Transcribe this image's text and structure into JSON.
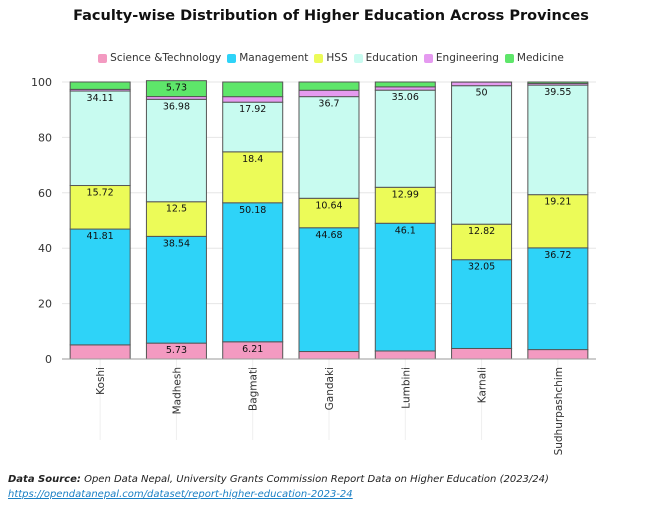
{
  "chart_data": {
    "type": "bar",
    "stacked": true,
    "title": "Faculty-wise Distribution of Higher Education Across Provinces",
    "categories": [
      "Koshi",
      "Madhesh",
      "Bagmati",
      "Gandaki",
      "Lumbini",
      "Karnali",
      "Sudhurpashchim"
    ],
    "ylim": [
      0,
      100
    ],
    "yticks": [
      0,
      20,
      40,
      60,
      80,
      100
    ],
    "grid": true,
    "legend_position": "top",
    "series": [
      {
        "name": "Science &Technology",
        "color": "#f39ac1",
        "values": [
          5.1,
          5.73,
          6.21,
          2.7,
          2.9,
          3.8,
          3.4
        ],
        "labels": [
          "",
          "5.73",
          "6.21",
          "",
          "",
          "",
          ""
        ]
      },
      {
        "name": "Management",
        "color": "#2ed3f8",
        "values": [
          41.81,
          38.54,
          50.18,
          44.68,
          46.1,
          32.05,
          36.72
        ],
        "labels": [
          "41.81",
          "38.54",
          "50.18",
          "44.68",
          "46.1",
          "32.05",
          "36.72"
        ]
      },
      {
        "name": "HSS",
        "color": "#ecfb58",
        "values": [
          15.72,
          12.5,
          18.4,
          10.64,
          12.99,
          12.82,
          19.21
        ],
        "labels": [
          "15.72",
          "12.5",
          "18.4",
          "10.64",
          "12.99",
          "12.82",
          "19.21"
        ]
      },
      {
        "name": "Education",
        "color": "#c8fbf0",
        "values": [
          34.11,
          36.98,
          17.92,
          36.7,
          35.06,
          50,
          39.55
        ],
        "labels": [
          "34.11",
          "36.98",
          "17.92",
          "36.7",
          "35.06",
          "50",
          "39.55"
        ]
      },
      {
        "name": "Engineering",
        "color": "#e59af0",
        "values": [
          0.6,
          1.0,
          2.0,
          2.3,
          1.2,
          1.3,
          0.6
        ],
        "labels": [
          "",
          "",
          "",
          "",
          "",
          "",
          ""
        ]
      },
      {
        "name": "Medicine",
        "color": "#5ee66a",
        "values": [
          2.66,
          5.73,
          5.29,
          2.98,
          1.75,
          0.03,
          0.52
        ],
        "labels": [
          "",
          "5.73",
          "",
          "",
          "",
          "",
          ""
        ]
      }
    ]
  },
  "footer": {
    "source_label": "Data Source:",
    "source_text": " Open Data Nepal, University Grants Commission Report Data on Higher Education (2023/24)",
    "url": "https://opendatanepal.com/dataset/report-higher-education-2023-24"
  }
}
